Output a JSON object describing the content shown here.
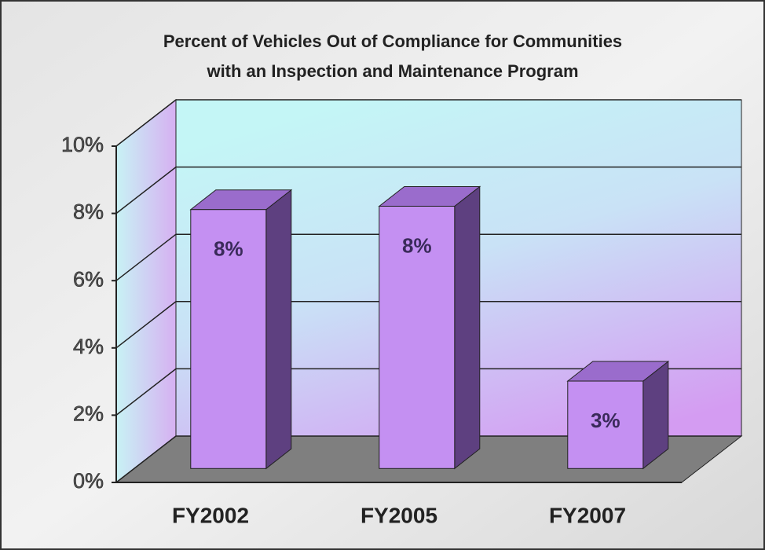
{
  "chart_data": {
    "type": "bar3d",
    "title": [
      "Percent of Vehicles Out of Compliance for Communities",
      "with an Inspection and Maintenance Program"
    ],
    "categories": [
      "FY2002",
      "FY2005",
      "FY2007"
    ],
    "values": [
      7.7,
      7.8,
      2.6
    ],
    "value_labels": [
      "8%",
      "8%",
      "3%"
    ],
    "color": "#c490f2",
    "ylim": [
      0,
      10
    ],
    "yticks": [
      {
        "value": 0,
        "label": "0%"
      },
      {
        "value": 2,
        "label": "2%"
      },
      {
        "value": 4,
        "label": "4%"
      },
      {
        "value": 6,
        "label": "6%"
      },
      {
        "value": 8,
        "label": "8%"
      },
      {
        "value": 10,
        "label": "10%"
      }
    ],
    "grid": true
  }
}
